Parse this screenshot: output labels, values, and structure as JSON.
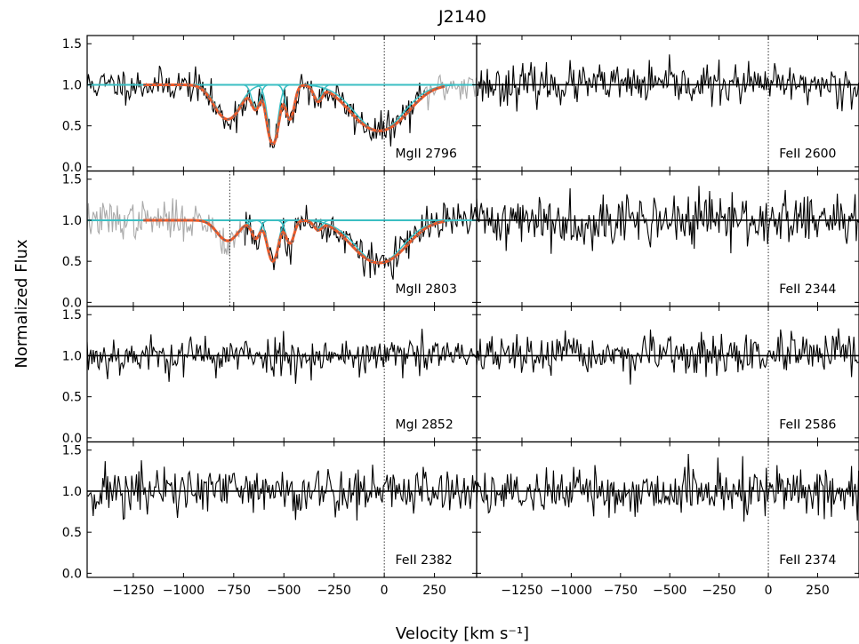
{
  "chart_data": {
    "type": "line",
    "title": "J2140",
    "xlabel": "Velocity [km s⁻¹]",
    "ylabel": "Normalized Flux",
    "xlim": [
      -1480,
      460
    ],
    "ylim": [
      -0.05,
      1.6
    ],
    "x_ticks": [
      -1250,
      -1000,
      -750,
      -500,
      -250,
      0,
      250
    ],
    "x_tick_labels": [
      "−1250",
      "−1000",
      "−750",
      "−500",
      "−250",
      "0",
      "250"
    ],
    "y_ticks": [
      0.0,
      0.5,
      1.0,
      1.5
    ],
    "y_tick_labels": [
      "0.0",
      "0.5",
      "1.0",
      "1.5"
    ],
    "layout": {
      "rows": 4,
      "cols": 2,
      "shared_x": true,
      "shared_y": true
    },
    "colors": {
      "data": "#000000",
      "masked": "#aaaaaa",
      "component": "#3bbfc4",
      "total_fit": "#f05a28",
      "total_fit_dash": "#2f6f8f"
    },
    "panels": [
      {
        "line": "MgII 2796",
        "fit_components": [
          {
            "v": -780,
            "depth": 0.42,
            "b": 85
          },
          {
            "v": -640,
            "depth": 0.28,
            "b": 28
          },
          {
            "v": -555,
            "depth": 0.72,
            "b": 35
          },
          {
            "v": -470,
            "depth": 0.42,
            "b": 28
          },
          {
            "v": -330,
            "depth": 0.18,
            "b": 28
          },
          {
            "v": -25,
            "depth": 0.56,
            "b": 170
          }
        ],
        "extra_markers": [],
        "masked_ranges": [
          [
            200,
            460
          ]
        ],
        "noise": 0.1,
        "seed": 11
      },
      {
        "line": "FeII 2600",
        "fit_components": [],
        "extra_markers": [],
        "masked_ranges": [],
        "noise": 0.12,
        "seed": 23
      },
      {
        "line": "MgII 2803",
        "fit_components": [
          {
            "v": -780,
            "depth": 0.25,
            "b": 70
          },
          {
            "v": -640,
            "depth": 0.22,
            "b": 28
          },
          {
            "v": -555,
            "depth": 0.5,
            "b": 35
          },
          {
            "v": -470,
            "depth": 0.28,
            "b": 28
          },
          {
            "v": -330,
            "depth": 0.1,
            "b": 28
          },
          {
            "v": -25,
            "depth": 0.52,
            "b": 165
          }
        ],
        "extra_markers": [
          -770
        ],
        "masked_ranges": [
          [
            -1480,
            -700
          ]
        ],
        "noise": 0.11,
        "seed": 37
      },
      {
        "line": "FeII 2344",
        "fit_components": [],
        "extra_markers": [],
        "masked_ranges": [],
        "noise": 0.16,
        "seed": 41
      },
      {
        "line": "MgI 2852",
        "fit_components": [],
        "extra_markers": [],
        "masked_ranges": [],
        "noise": 0.12,
        "seed": 53
      },
      {
        "line": "FeII 2586",
        "fit_components": [],
        "extra_markers": [],
        "masked_ranges": [],
        "noise": 0.12,
        "seed": 67
      },
      {
        "line": "FeII 2382",
        "fit_components": [],
        "extra_markers": [],
        "masked_ranges": [],
        "noise": 0.16,
        "seed": 71
      },
      {
        "line": "FeII 2374",
        "fit_components": [],
        "extra_markers": [],
        "masked_ranges": [],
        "noise": 0.15,
        "seed": 89
      }
    ]
  }
}
